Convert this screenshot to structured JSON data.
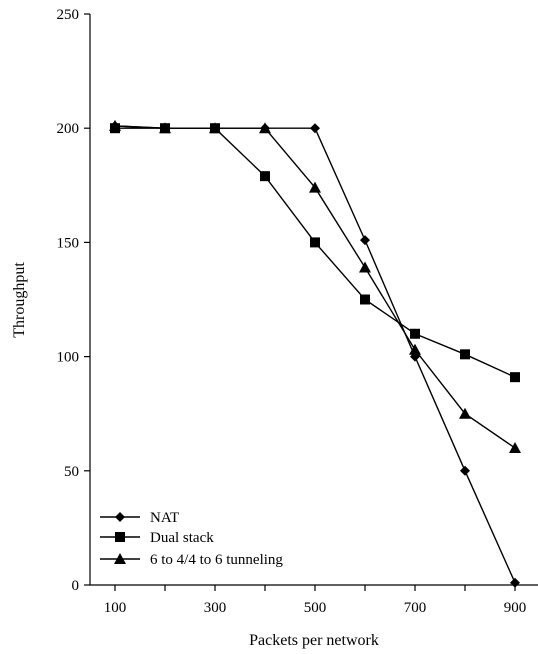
{
  "chart_data": {
    "type": "line",
    "title": "",
    "xlabel": "Packets per network",
    "ylabel": "Throughput",
    "x": [
      100,
      200,
      300,
      400,
      500,
      600,
      700,
      800,
      900
    ],
    "xticks": [
      "100",
      "300",
      "500",
      "700",
      "900"
    ],
    "yticks": [
      "0",
      "50",
      "100",
      "150",
      "200",
      "250"
    ],
    "xlim": [
      60,
      940
    ],
    "ylim": [
      0,
      250
    ],
    "grid": false,
    "legend_position": "bottom-left",
    "series": [
      {
        "name": "NAT",
        "marker": "diamond",
        "values": [
          201,
          200,
          200,
          200,
          200,
          151,
          100,
          50,
          1
        ]
      },
      {
        "name": "Dual stack",
        "marker": "square",
        "values": [
          200,
          200,
          200,
          179,
          150,
          125,
          110,
          101,
          91
        ]
      },
      {
        "name": "6 to 4/4 to 6 tunneling",
        "marker": "triangle",
        "values": [
          201,
          200,
          200,
          200,
          174,
          139,
          103,
          75,
          60
        ]
      }
    ]
  }
}
